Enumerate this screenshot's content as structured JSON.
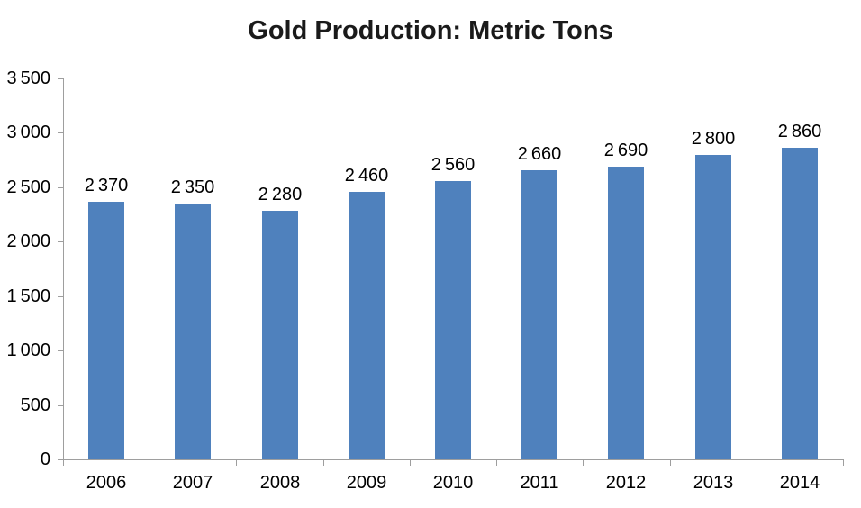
{
  "page": {
    "background": "#ffffff",
    "right_border_color": "#5f7c63",
    "right_border_x": 950
  },
  "chart_data": {
    "type": "bar",
    "title": "Gold Production: Metric Tons",
    "categories": [
      "2006",
      "2007",
      "2008",
      "2009",
      "2010",
      "2011",
      "2012",
      "2013",
      "2014"
    ],
    "values": [
      2370,
      2350,
      2280,
      2460,
      2560,
      2660,
      2690,
      2800,
      2860
    ],
    "value_labels": [
      "2 370",
      "2 350",
      "2 280",
      "2 460",
      "2 560",
      "2 660",
      "2 690",
      "2 800",
      "2 860"
    ],
    "y_tick_values": [
      0,
      500,
      1000,
      1500,
      2000,
      2500,
      3000,
      3500
    ],
    "y_tick_labels": [
      "0",
      "500",
      "1 000",
      "1 500",
      "2 000",
      "2 500",
      "3 000",
      "3 500"
    ],
    "ylim": [
      0,
      3500
    ],
    "xlabel": "",
    "ylabel": "",
    "grid": false,
    "legend": null,
    "data_labels": true,
    "bar_color": "#4F81BD",
    "axis_color": "#9e9e9e",
    "text_color": "#000000",
    "title_color": "#1a1a1a"
  }
}
